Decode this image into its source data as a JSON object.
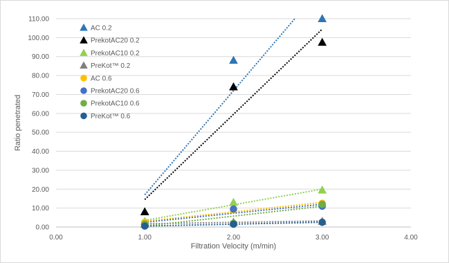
{
  "chart_data": {
    "type": "scatter",
    "xlabel": "Filtration Velocity (m/min)",
    "ylabel": "Ratio penetrated",
    "xlim": [
      0,
      4
    ],
    "ylim": [
      0,
      110
    ],
    "x_ticks": [
      "0.00",
      "1.00",
      "2.00",
      "3.00",
      "4.00"
    ],
    "y_ticks": [
      "0.00",
      "10.00",
      "20.00",
      "30.00",
      "40.00",
      "50.00",
      "60.00",
      "70.00",
      "80.00",
      "90.00",
      "100.00",
      "110.00"
    ],
    "grid": "horizontal",
    "legend": "top-left",
    "series": [
      {
        "name": "AC 0.2",
        "marker": "triangle",
        "color": "#2e75b6",
        "x": [
          1,
          2,
          3
        ],
        "y": [
          8.0,
          88.0,
          110.0
        ],
        "trend": [
          17.0,
          127.0
        ]
      },
      {
        "name": "PrekotAC20 0.2",
        "marker": "triangle",
        "color": "#000000",
        "x": [
          1,
          2,
          3
        ],
        "y": [
          8.0,
          74.0,
          97.5
        ],
        "trend": [
          14.5,
          104.5
        ]
      },
      {
        "name": "PrekotAC10 0.2",
        "marker": "triangle",
        "color": "#92d050",
        "x": [
          1,
          2,
          3
        ],
        "y": [
          3.0,
          13.0,
          19.5
        ],
        "trend": [
          3.5,
          20.0
        ]
      },
      {
        "name": "PreKot™ 0.2",
        "marker": "triangle",
        "color": "#7f7f7f",
        "x": [
          1,
          2,
          3
        ],
        "y": [
          1.5,
          2.5,
          3.0
        ],
        "trend": [
          1.7,
          3.2
        ]
      },
      {
        "name": "AC 0.6",
        "marker": "circle",
        "color": "#ffc000",
        "x": [
          1,
          2,
          3
        ],
        "y": [
          2.5,
          9.0,
          12.5
        ],
        "trend": [
          3.0,
          13.0
        ]
      },
      {
        "name": "PrekotAC20 0.6",
        "marker": "circle",
        "color": "#4472c4",
        "x": [
          1,
          2,
          3
        ],
        "y": [
          1.5,
          9.5,
          11.0
        ],
        "trend": [
          2.5,
          12.0
        ]
      },
      {
        "name": "PrekotAC10 0.6",
        "marker": "circle",
        "color": "#70ad47",
        "x": [
          1,
          2,
          3
        ],
        "y": [
          1.5,
          2.0,
          12.0
        ],
        "trend": [
          0.5,
          11.0
        ]
      },
      {
        "name": "PreKot™ 0.6",
        "marker": "circle",
        "color": "#255e91",
        "x": [
          1,
          2,
          3
        ],
        "y": [
          0.5,
          1.5,
          2.5
        ],
        "trend": [
          0.5,
          2.5
        ]
      }
    ]
  }
}
